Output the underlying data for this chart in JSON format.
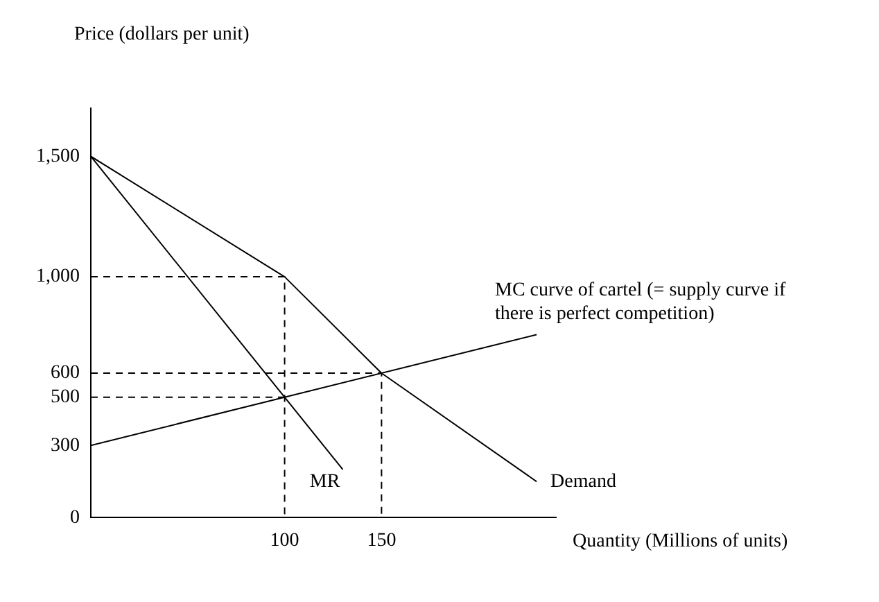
{
  "chart_data": {
    "type": "line",
    "xlabel": "Quantity (Millions of units)",
    "ylabel": "Price (dollars per unit)",
    "series": [
      {
        "name": "MC curve of cartel (= supply curve if there is perfect competition)",
        "color": "#000000",
        "x": [
          0,
          230
        ],
        "values": [
          300,
          760
        ]
      },
      {
        "name": "Demand",
        "color": "#000000",
        "x": [
          0,
          100,
          150,
          230
        ],
        "values": [
          1500,
          1000,
          600,
          150
        ]
      },
      {
        "name": "MR",
        "color": "#000000",
        "x": [
          0,
          130
        ],
        "values": [
          1500,
          200
        ]
      },
      {
        "color": "#000000",
        "x": [
          0,
          100,
          100
        ],
        "values": [
          1000,
          1000,
          0
        ],
        "line_style": "dashed"
      },
      {
        "color": "#000000",
        "x": [
          0,
          150,
          150
        ],
        "values": [
          600,
          600,
          0
        ],
        "line_style": "dashed"
      },
      {
        "color": "#000000",
        "x": [
          0,
          100
        ],
        "values": [
          500,
          500
        ],
        "line_style": "dashed"
      }
    ],
    "xlim": [
      0,
      240
    ],
    "ylim": [
      0,
      1700
    ],
    "xticks": [
      100,
      150
    ],
    "yticks": [
      0,
      300,
      500,
      600,
      {
        "value": 1000,
        "label": "1,000"
      },
      {
        "value": 1500,
        "label": "1,500"
      }
    ],
    "grid": false,
    "legend": false,
    "marker": "none",
    "line_style": "solid"
  }
}
